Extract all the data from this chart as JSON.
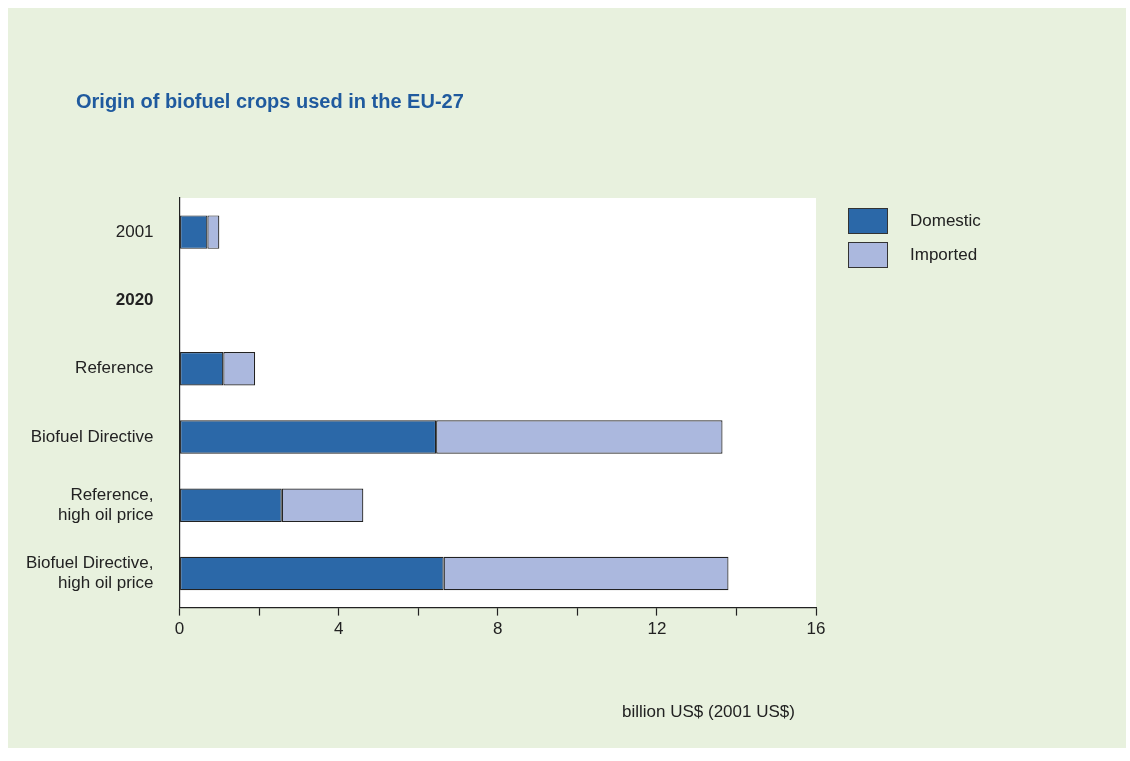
{
  "chart_data": {
    "type": "bar",
    "orientation": "horizontal",
    "stacked": true,
    "title": "Origin of biofuel crops used in the EU-27",
    "xlabel": "billion US$ (2001 US$)",
    "categories": [
      "2001",
      "2020",
      "Reference",
      "Biofuel Directive",
      "Reference,\nhigh oil price",
      "Biofuel Directive,\nhigh oil price"
    ],
    "series": [
      {
        "name": "Domestic",
        "color": "#2b68a8",
        "values": [
          0.7,
          null,
          1.1,
          6.45,
          2.57,
          6.64
        ]
      },
      {
        "name": "Imported",
        "color": "#abb8de",
        "values": [
          0.3,
          null,
          0.8,
          7.2,
          2.05,
          7.16
        ]
      }
    ],
    "xlim": [
      0,
      16
    ],
    "xticks": [
      0,
      {
        "value": 2,
        "label": null
      },
      4,
      {
        "value": 6,
        "label": null
      },
      8,
      {
        "value": 10,
        "label": null
      },
      12,
      {
        "value": 14,
        "label": null
      },
      16
    ],
    "grid": false,
    "legend": "top right"
  }
}
